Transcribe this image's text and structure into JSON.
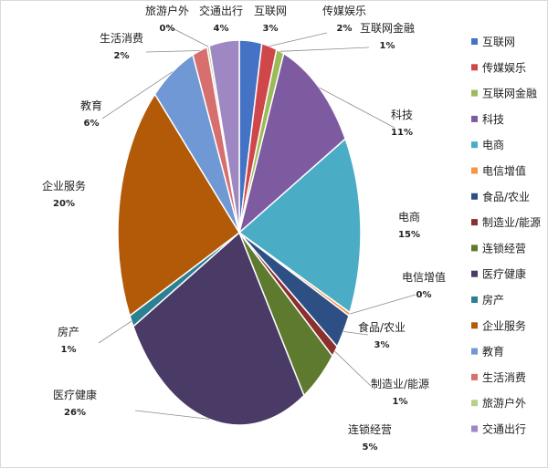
{
  "chart_data": {
    "type": "pie",
    "categories": [
      "互联网",
      "传媒娱乐",
      "互联网金融",
      "科技",
      "电商",
      "电信增值",
      "食品/农业",
      "制造业/能源",
      "连锁经营",
      "医疗健康",
      "房产",
      "企业服务",
      "教育",
      "生活消费",
      "旅游户外",
      "交通出行"
    ],
    "values": [
      3,
      2,
      1,
      11,
      15,
      0.3,
      3,
      1,
      5,
      26,
      1,
      20,
      6,
      2,
      0.3,
      4
    ],
    "labels": [
      "3%",
      "2%",
      "1%",
      "11%",
      "15%",
      "0%",
      "3%",
      "1%",
      "5%",
      "26%",
      "1%",
      "20%",
      "6%",
      "2%",
      "0%",
      "4%"
    ],
    "colors": [
      "#4472c4",
      "#d0474b",
      "#9bbb59",
      "#7e5ba1",
      "#4bacc6",
      "#f79646",
      "#2e4f84",
      "#8b2f2f",
      "#5e7a2e",
      "#4a3a66",
      "#2c8093",
      "#b35a08",
      "#6f98d4",
      "#d86f6f",
      "#b5d18a",
      "#9e87c2"
    ],
    "legend_position": "right"
  }
}
